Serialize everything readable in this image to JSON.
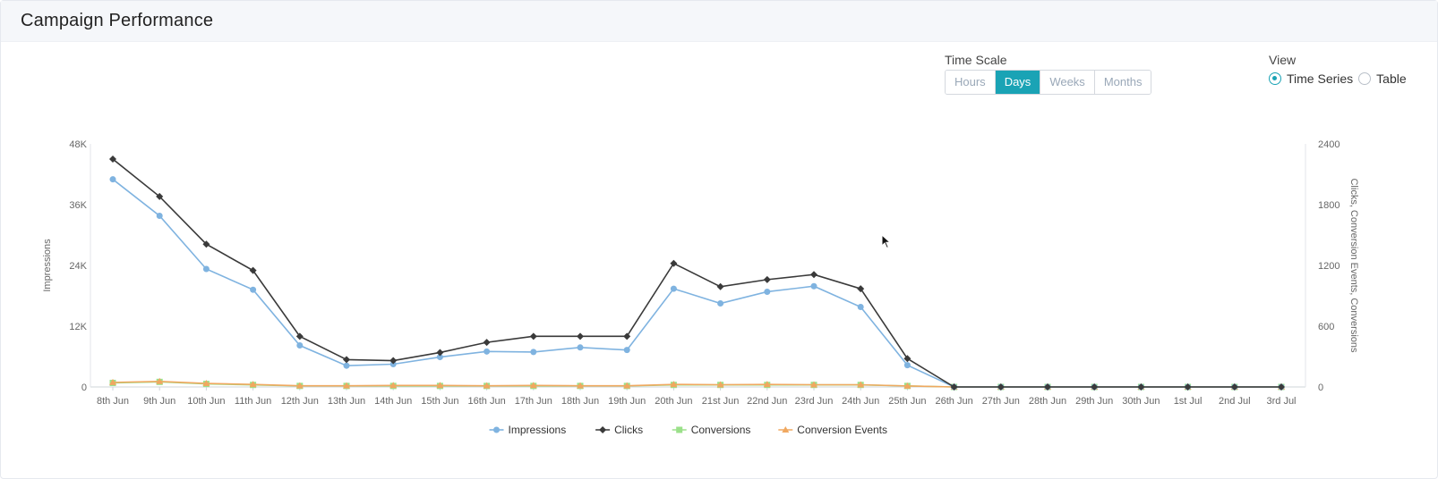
{
  "panel": {
    "title": "Campaign Performance"
  },
  "time_scale": {
    "label": "Time Scale",
    "options": [
      "Hours",
      "Days",
      "Weeks",
      "Months"
    ],
    "selected": "Days"
  },
  "view": {
    "label": "View",
    "options": [
      "Time Series",
      "Table"
    ],
    "selected": "Time Series"
  },
  "colors": {
    "accent": "#1aa3b5",
    "impressions": "#7fb3e0",
    "clicks": "#3a3a3a",
    "conversions": "#9be08a",
    "conversion_events": "#f0a860"
  },
  "chart_data": {
    "type": "line",
    "categories": [
      "8th Jun",
      "9th Jun",
      "10th Jun",
      "11th Jun",
      "12th Jun",
      "13th Jun",
      "14th Jun",
      "15th Jun",
      "16th Jun",
      "17th Jun",
      "18th Jun",
      "19th Jun",
      "20th Jun",
      "21st Jun",
      "22nd Jun",
      "23rd Jun",
      "24th Jun",
      "25th Jun",
      "26th Jun",
      "27th Jun",
      "28th Jun",
      "29th Jun",
      "30th Jun",
      "1st Jul",
      "2nd Jul",
      "3rd Jul"
    ],
    "left_axis": {
      "label": "Impressions",
      "range": [
        0,
        48000
      ],
      "ticks": [
        0,
        12000,
        24000,
        36000,
        48000
      ],
      "tick_labels": [
        "0",
        "12K",
        "24K",
        "36K",
        "48K"
      ]
    },
    "right_axis": {
      "label": "Clicks, Conversion Events, Conversions",
      "range": [
        0,
        2400
      ],
      "ticks": [
        0,
        600,
        1200,
        1800,
        2400
      ],
      "tick_labels": [
        "0",
        "600",
        "1200",
        "1800",
        "2400"
      ]
    },
    "series": [
      {
        "name": "Impressions",
        "axis": "left",
        "color": "#7fb3e0",
        "marker": "circle",
        "values": [
          41000,
          33800,
          23300,
          19200,
          8200,
          4200,
          4500,
          5900,
          7000,
          6900,
          7800,
          7300,
          19400,
          16500,
          18800,
          19900,
          15800,
          4300,
          0,
          0,
          0,
          0,
          0,
          0,
          0,
          0
        ]
      },
      {
        "name": "Clicks",
        "axis": "right",
        "color": "#3a3a3a",
        "marker": "diamond",
        "values": [
          2250,
          1880,
          1410,
          1150,
          500,
          270,
          260,
          340,
          440,
          500,
          500,
          500,
          1220,
          990,
          1060,
          1110,
          970,
          280,
          0,
          0,
          0,
          0,
          0,
          0,
          0,
          0
        ]
      },
      {
        "name": "Conversions",
        "axis": "right",
        "color": "#9be08a",
        "marker": "square",
        "values": [
          40,
          50,
          30,
          20,
          10,
          10,
          10,
          10,
          10,
          10,
          10,
          10,
          20,
          20,
          20,
          20,
          20,
          10,
          0,
          0,
          0,
          0,
          0,
          0,
          0,
          0
        ]
      },
      {
        "name": "Conversion Events",
        "axis": "right",
        "color": "#f0a860",
        "marker": "triangle",
        "values": [
          45,
          55,
          35,
          25,
          12,
          12,
          15,
          15,
          12,
          15,
          12,
          12,
          25,
          22,
          25,
          22,
          22,
          10,
          0,
          0,
          0,
          0,
          0,
          0,
          0,
          0
        ]
      }
    ],
    "legend": {
      "position": "bottom-center",
      "items": [
        "Impressions",
        "Clicks",
        "Conversions",
        "Conversion Events"
      ]
    },
    "grid": false
  }
}
